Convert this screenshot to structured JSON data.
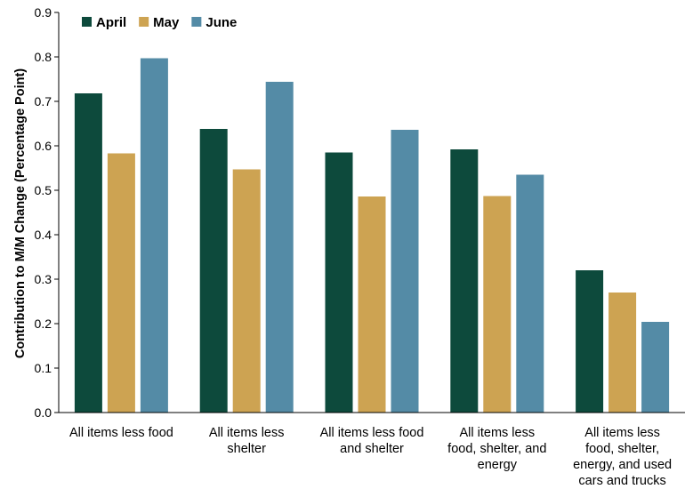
{
  "chart_data": {
    "type": "bar",
    "title": "",
    "xlabel": "",
    "ylabel": "Contribution to M/M Change (Percentage Point)",
    "ylim": [
      0,
      0.9
    ],
    "yticks": [
      "0.0",
      "0.1",
      "0.2",
      "0.3",
      "0.4",
      "0.5",
      "0.6",
      "0.7",
      "0.8",
      "0.9"
    ],
    "grid": false,
    "legend_position": "top-left",
    "categories": [
      "All items less food",
      "All items less shelter",
      "All items less food and shelter",
      "All items less food, shelter, and energy",
      "All items less food, shelter, energy, and used cars and trucks"
    ],
    "category_lines": [
      [
        "All items less food"
      ],
      [
        "All items less",
        "shelter"
      ],
      [
        "All items less food",
        "and shelter"
      ],
      [
        "All items less",
        "food, shelter, and",
        "energy"
      ],
      [
        "All items less",
        "food, shelter,",
        "energy, and used",
        "cars and trucks"
      ]
    ],
    "series": [
      {
        "name": "April",
        "color": "#0d4a3c",
        "values": [
          0.718,
          0.638,
          0.585,
          0.592,
          0.32
        ]
      },
      {
        "name": "May",
        "color": "#cda352",
        "values": [
          0.583,
          0.547,
          0.486,
          0.487,
          0.27
        ]
      },
      {
        "name": "June",
        "color": "#548ba6",
        "values": [
          0.797,
          0.744,
          0.636,
          0.535,
          0.204
        ]
      }
    ]
  }
}
